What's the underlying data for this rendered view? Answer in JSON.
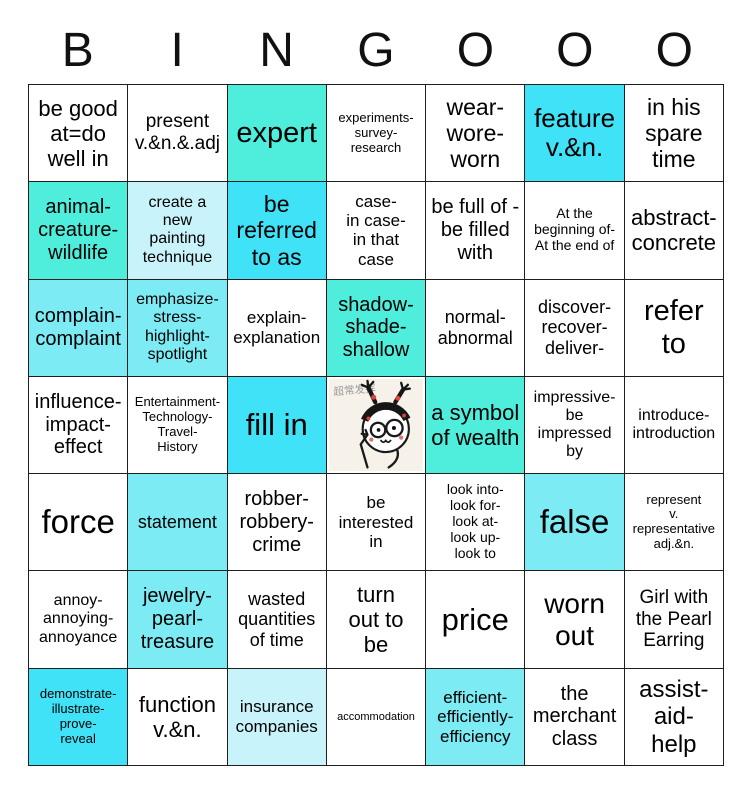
{
  "title": {
    "letters": [
      "B",
      "I",
      "N",
      "G",
      "O",
      "O",
      "O"
    ]
  },
  "colors": {
    "turquoise": "#4FEDDB",
    "cyan": "#3FE2F6",
    "light_cyan": "#7DEBF4",
    "pale_cyan": "#C9F3FA",
    "grid_line": "#1F1F1F",
    "text": "#000000"
  },
  "board": {
    "cells": [
      {
        "text": "be good\nat=do\nwell in",
        "bg": "white",
        "fs": 22
      },
      {
        "text": "present\nv.&n.&.adj",
        "bg": "white",
        "fs": 19
      },
      {
        "text": "expert",
        "bg": "turquoise",
        "fs": 29
      },
      {
        "text": "experiments-\nsurvey-\nresearch",
        "bg": "white",
        "fs": 13
      },
      {
        "text": "wear-\nwore-\nworn",
        "bg": "white",
        "fs": 23
      },
      {
        "text": "feature\nv.&n.",
        "bg": "cyan",
        "fs": 26
      },
      {
        "text": "in his\nspare\ntime",
        "bg": "white",
        "fs": 23
      },
      {
        "text": "animal-\ncreature-\nwildlife",
        "bg": "turquoise",
        "fs": 20
      },
      {
        "text": "create a\nnew\npainting\ntechnique",
        "bg": "pale_cyan",
        "fs": 16
      },
      {
        "text": "be\nreferred\nto as",
        "bg": "cyan",
        "fs": 23
      },
      {
        "text": "case-\nin case-\nin that\ncase",
        "bg": "white",
        "fs": 17
      },
      {
        "text": "be full of -\nbe filled\nwith",
        "bg": "white",
        "fs": 20
      },
      {
        "text": "At the\nbeginning of-\nAt the end of",
        "bg": "white",
        "fs": 14
      },
      {
        "text": "abstract-\nconcrete",
        "bg": "white",
        "fs": 22
      },
      {
        "text": "complain-\ncomplaint",
        "bg": "light_cyan",
        "fs": 20
      },
      {
        "text": "emphasize-\nstress-\nhighlight-\nspotlight",
        "bg": "light_cyan",
        "fs": 16
      },
      {
        "text": "explain-\nexplanation",
        "bg": "white",
        "fs": 17
      },
      {
        "text": "shadow-\nshade-\nshallow",
        "bg": "turquoise",
        "fs": 20
      },
      {
        "text": "normal-\nabnormal",
        "bg": "white",
        "fs": 18
      },
      {
        "text": "discover-\nrecover-\ndeliver-",
        "bg": "white",
        "fs": 18
      },
      {
        "text": "refer\nto",
        "bg": "white",
        "fs": 29
      },
      {
        "text": "influence-\nimpact-\neffect",
        "bg": "white",
        "fs": 20
      },
      {
        "text": "Entertainment-\nTechnology-\nTravel-\nHistory",
        "bg": "white",
        "fs": 13
      },
      {
        "text": "fill in",
        "bg": "cyan",
        "fs": 31
      },
      {
        "type": "image",
        "caption": "超常发挥",
        "bg": "white",
        "fs": 12
      },
      {
        "text": "a symbol\nof wealth",
        "bg": "turquoise",
        "fs": 22
      },
      {
        "text": "impressive-\nbe\nimpressed\nby",
        "bg": "white",
        "fs": 16
      },
      {
        "text": "introduce-\nintroduction",
        "bg": "white",
        "fs": 16
      },
      {
        "text": "force",
        "bg": "white",
        "fs": 33
      },
      {
        "text": "statement",
        "bg": "light_cyan",
        "fs": 18
      },
      {
        "text": "robber-\nrobbery-\ncrime",
        "bg": "white",
        "fs": 20
      },
      {
        "text": "be\ninterested\nin",
        "bg": "white",
        "fs": 17
      },
      {
        "text": "look into-\nlook for-\nlook at-\nlook up-\nlook to",
        "bg": "white",
        "fs": 14
      },
      {
        "text": "false",
        "bg": "light_cyan",
        "fs": 33
      },
      {
        "text": "represent\nv.\nrepresentative\nadj.&n.",
        "bg": "white",
        "fs": 13
      },
      {
        "text": "annoy-\nannoying-\nannoyance",
        "bg": "white",
        "fs": 16
      },
      {
        "text": "jewelry-\npearl-\ntreasure",
        "bg": "light_cyan",
        "fs": 20
      },
      {
        "text": "wasted\nquantities\nof time",
        "bg": "white",
        "fs": 18
      },
      {
        "text": "turn\nout to\nbe",
        "bg": "white",
        "fs": 22
      },
      {
        "text": "price",
        "bg": "white",
        "fs": 31
      },
      {
        "text": "worn\nout",
        "bg": "white",
        "fs": 28
      },
      {
        "text": "Girl with\nthe Pearl\nEarring",
        "bg": "white",
        "fs": 19
      },
      {
        "text": "demonstrate-\nillustrate-\nprove-\nreveal",
        "bg": "cyan",
        "fs": 13
      },
      {
        "text": "function\nv.&n.",
        "bg": "white",
        "fs": 22
      },
      {
        "text": "insurance\ncompanies",
        "bg": "pale_cyan",
        "fs": 17
      },
      {
        "text": "accommodation",
        "bg": "white",
        "fs": 11
      },
      {
        "text": "efficient-\nefficiently-\nefficiency",
        "bg": "light_cyan",
        "fs": 17
      },
      {
        "text": "the\nmerchant\nclass",
        "bg": "white",
        "fs": 20
      },
      {
        "text": "assist-\naid-\nhelp",
        "bg": "white",
        "fs": 24
      }
    ]
  }
}
